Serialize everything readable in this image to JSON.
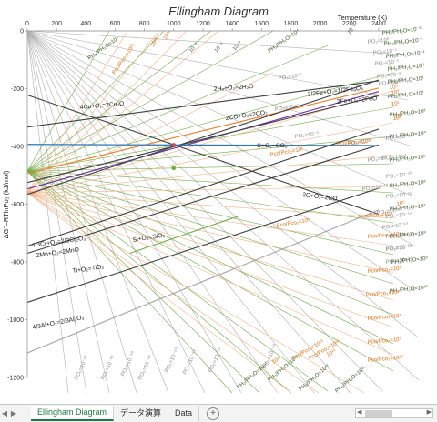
{
  "chart_data": {
    "type": "line",
    "title": "Ellingham Diagram",
    "xlabel": "Temperature (K)",
    "ylabel": "ΔG°=RTlnPo₂ (kJ/mol)",
    "xlim": [
      0,
      2500
    ],
    "ylim": [
      -1200,
      0
    ],
    "x_ticks": [
      0,
      200,
      400,
      600,
      800,
      1000,
      1200,
      1400,
      1600,
      1800,
      2000,
      2200,
      2400
    ],
    "y_ticks": [
      0,
      -200,
      -400,
      -600,
      -800,
      -1000,
      -1200
    ],
    "y_tick_labels": [
      "0",
      "-200",
      "-400",
      "-600",
      "-800",
      "-1000",
      "-1200"
    ],
    "grid": false,
    "series": [
      {
        "name": "4Cu+O₂=2Cu₂O",
        "color": "#404040",
        "x": [
          0,
          2400
        ],
        "y": [
          -333,
          -173
        ]
      },
      {
        "name": "2H₂+O₂=2H₂O",
        "color": "#e67e22",
        "x": [
          0,
          2400
        ],
        "y": [
          -493,
          -198
        ]
      },
      {
        "name": "3/2Fe+O₂=1/2Fe₃O₄",
        "color": "#7030a0",
        "x": [
          0,
          2400
        ],
        "y": [
          -547,
          -210
        ]
      },
      {
        "name": "2Fe+O₂=2FeO",
        "color": "#404040",
        "x": [
          0,
          2400
        ],
        "y": [
          -525,
          -225
        ]
      },
      {
        "name": "2CO+O₂=2CO₂",
        "color": "#404040",
        "x": [
          0,
          2400
        ],
        "y": [
          -566,
          -170
        ]
      },
      {
        "name": "C+O₂=CO₂",
        "color": "#2e75b6",
        "x": [
          0,
          2400
        ],
        "y": [
          -393,
          -397
        ]
      },
      {
        "name": "2C+O₂=2CO",
        "color": "#404040",
        "x": [
          0,
          2400
        ],
        "y": [
          -222,
          -635
        ]
      },
      {
        "name": "4/3Cr+O₂=2/3Cr₂O₃",
        "color": "#404040",
        "x": [
          0,
          2400
        ],
        "y": [
          -745,
          -340
        ]
      },
      {
        "name": "2Mn+O₂=2MnO",
        "color": "#404040",
        "x": [
          0,
          2400
        ],
        "y": [
          -770,
          -395
        ]
      },
      {
        "name": "Si+O₂=SiO₂",
        "color": "#70ad47",
        "x": [
          700,
          1450
        ],
        "y": [
          -770,
          -640
        ]
      },
      {
        "name": "Ti+O₂=TiO₂",
        "color": "#404040",
        "x": [
          0,
          2400
        ],
        "y": [
          -940,
          -545
        ]
      },
      {
        "name": "4/3Al+O₂=2/3Al₂O₃",
        "color": "#a5a5a5",
        "x": [
          0,
          2400
        ],
        "y": [
          -1115,
          -620
        ]
      }
    ],
    "markers": [
      {
        "x": 1000,
        "y": -395,
        "color": "#c0504d"
      },
      {
        "x": 1000,
        "y": -475,
        "color": "#70ad47"
      }
    ],
    "scale_labels": {
      "top_h2": [
        "PH₂/PH₂O=10⁴",
        "PH₂/PH₂O=10⁴"
      ],
      "top_co": [
        "Pco/Pco₂=10¹⁴",
        "10¹³",
        "10¹²"
      ],
      "top_pure": [
        "10⁻⁵",
        "10⁻⁴",
        "10⁻³",
        "10⁻²"
      ],
      "inner_po2": [
        "PO₂=10⁻¹",
        "PO₂=10⁻³",
        "PO₂=10⁻⁵",
        "PO₂=10⁻⁷",
        "PO₂=10⁻⁸",
        "PO₂=10⁻¹⁰",
        "PO₂=10⁻¹²",
        "PO₂=10⁻¹⁴",
        "PO₂=10⁻¹⁶"
      ],
      "inner_co": [
        "Pco/Pco₂=10¹",
        "Pco/Pco₂=10²",
        "10³",
        "10⁴",
        "10⁵"
      ],
      "right_po2": [
        "PO₂=10⁰",
        "PO₂=10⁻¹",
        "PO₂=10⁻²",
        "PO₂=10⁻³",
        "PO₂=10⁻⁴",
        "PO₂=10⁻⁶",
        "PO₂=10⁻⁸",
        "PO₂=10⁻¹⁰",
        "PO₂=10⁻¹²",
        "PO₂=10⁻¹⁴",
        "PO₂=10⁻¹⁶",
        "PO₂=10⁻¹⁸",
        "PO₂=10⁻²⁰"
      ],
      "right_h2": [
        "PH₂/PH₂O=10⁻³",
        "PH₂/PH₂O=10⁻²",
        "PH₂/PH₂O=10⁻¹",
        "PH₂/PH₂O=10⁰",
        "PH₂/PH₂O=10¹",
        "PH₂/PH₂O=10²",
        "PH₂/PH₂O=10³",
        "PH₂/PH₂O=10⁴",
        "PH₂/PH₂O=10⁵",
        "PH₂/PH₂O=10⁶",
        "PH₂/PH₂O=10⁷",
        "PH₂/PH₂O=10⁸",
        "PH₂/PH₂O=10⁹",
        "PH₂/PH₂O=10¹⁰"
      ],
      "right_co": [
        "10⁰",
        "10¹",
        "10²",
        "Pco/Pco₂=10³",
        "Pco/Pco₂=10⁴",
        "Pco/Pco₂=10⁵",
        "Pco/Pco₂=10⁶",
        "Pco/Pco₂=10⁷",
        "Pco/Pco₂=10⁸",
        "Pco/Pco₂=10⁹",
        "Pco/Pco₂=10¹⁰"
      ],
      "bottom_po2": [
        "PO₂=10⁻³⁰",
        "PO₂=10⁻³⁸",
        "PO₂=10⁻⁴⁰",
        "PO₂=10⁻⁴⁵",
        "PO₂=10⁻⁵⁰",
        "PO₂=10⁻⁶⁰",
        "PO₂=10⁻⁷⁰",
        "PO₂=10⁻⁸⁰"
      ],
      "bottom_h2": [
        "PH₂/PH₂O=10¹⁴",
        "PH₂/PH₂O=10¹³",
        "PH₂/PH₂O=10¹²",
        "PH₂/PH₂O=10¹¹"
      ],
      "bottom_co": [
        "10¹⁵",
        "Pco/Pco₂=10¹³",
        "Pco/Pco₂=10¹²",
        "10¹¹"
      ]
    }
  },
  "sheet_tabs": {
    "items": [
      {
        "label": "Ellingham Diagram",
        "active": true
      },
      {
        "label": "データ演算",
        "active": false
      },
      {
        "label": "Data",
        "active": false
      }
    ],
    "add_label": "+"
  },
  "colors": {
    "grid_line": "#b0b0b0",
    "h2_line": "#70ad47",
    "co_line": "#f4b183",
    "co_text": "#e46c0a",
    "h2_text": "#375623",
    "po2_text": "#8c8c8c"
  }
}
